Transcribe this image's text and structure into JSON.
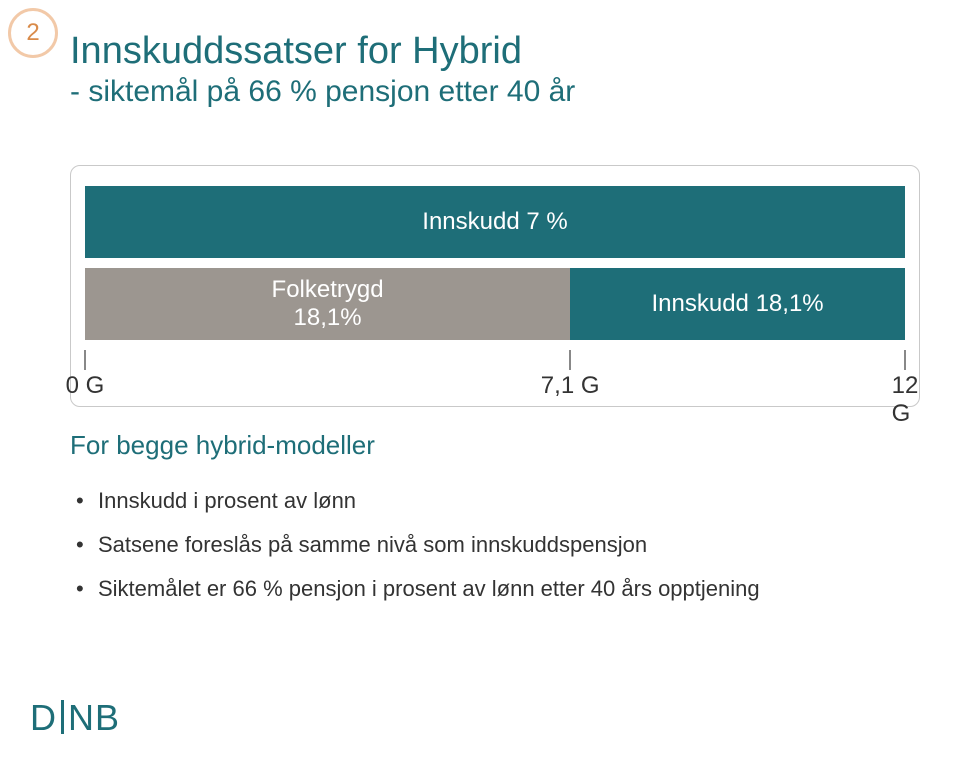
{
  "colors": {
    "accent_orange": "#d98b4a",
    "circle_border": "#f2c9a8",
    "title": "#1e6e78",
    "teal": "#1e6e78",
    "gray": "#9c9690",
    "frame_border": "#c9c9c9",
    "tick": "#888888",
    "text": "#333333",
    "logo": "#1e6e78"
  },
  "fonts": {
    "title1_size": 38,
    "title2_size": 30,
    "bar_label_size": 24,
    "tick_label_size": 24,
    "bullets_heading_size": 26,
    "bullet_size": 22,
    "logo_size": 36
  },
  "slide_number": "2",
  "title_line1": "Innskuddssatser for Hybrid",
  "title_line2": "- siktemål på 66 % pensjon etter 40 år",
  "diagram": {
    "x_min": 0,
    "x_max": 12,
    "row1": {
      "bar": {
        "from": 0,
        "to": 12,
        "label": "Innskudd 7 %",
        "fill_key": "teal"
      }
    },
    "row2": {
      "bar_a": {
        "from": 0,
        "to": 7.1,
        "label": "Folketrygd\n18,1%",
        "fill_key": "gray"
      },
      "bar_b": {
        "from": 7.1,
        "to": 12,
        "label": "Innskudd 18,1%",
        "fill_key": "teal"
      }
    },
    "ticks": [
      {
        "x": 0,
        "label": "0 G"
      },
      {
        "x": 7.1,
        "label": "7,1 G"
      },
      {
        "x": 12,
        "label": "12 G"
      }
    ]
  },
  "bullets_heading": "For begge hybrid-modeller",
  "bullets": [
    "Innskudd i prosent av lønn",
    "Satsene foreslås på samme nivå som  innskuddspensjon",
    "Siktemålet er 66 % pensjon i prosent av lønn etter 40 års opptjening"
  ],
  "logo_text_left": "D",
  "logo_text_right": "B"
}
